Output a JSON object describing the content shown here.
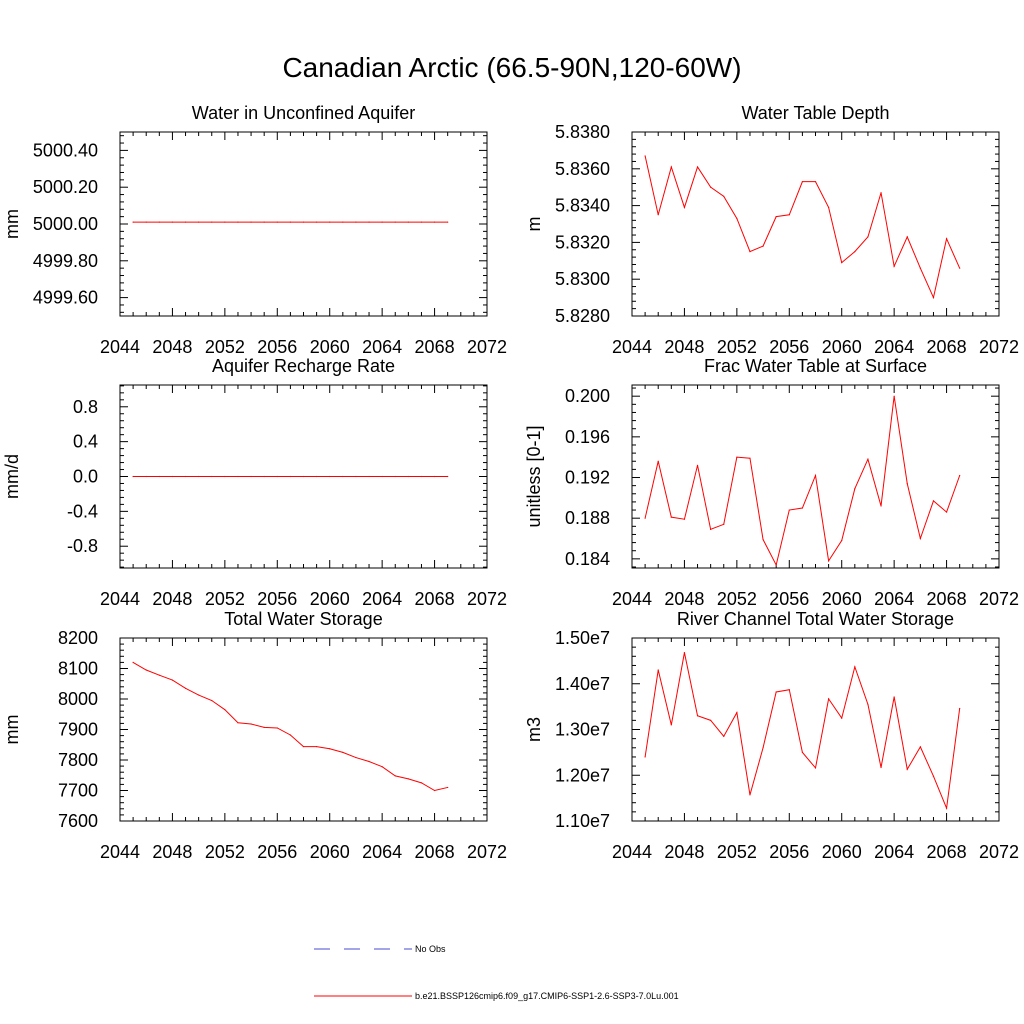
{
  "title": "Canadian Arctic (66.5-90N,120-60W)",
  "colors": {
    "model_line": "#ff0000",
    "obs_line": "#4a4ad0",
    "axis": "#000000"
  },
  "legend": {
    "obs_label": "No Obs",
    "model_label": "b.e21.BSSP126cmip6.f09_g17.CMIP6-SSP1-2.6-SSP3-7.0Lu.001"
  },
  "chart_data": [
    {
      "type": "line",
      "title": "Water in Unconfined Aquifer",
      "xlabel": "",
      "ylabel": "mm",
      "xlim": [
        2044,
        2072
      ],
      "ylim": [
        4999.5,
        5000.5
      ],
      "xticks": [
        "2044",
        "2048",
        "2052",
        "2056",
        "2060",
        "2064",
        "2068",
        "2072"
      ],
      "yticks": [
        "4999.60",
        "4999.80",
        "5000.00",
        "5000.20",
        "5000.40"
      ],
      "x": [
        2045,
        2046,
        2047,
        2048,
        2049,
        2050,
        2051,
        2052,
        2053,
        2054,
        2055,
        2056,
        2057,
        2058,
        2059,
        2060,
        2061,
        2062,
        2063,
        2064,
        2065,
        2066,
        2067,
        2068,
        2069
      ],
      "series": [
        {
          "values": [
            5000.01,
            5000.01,
            5000.01,
            5000.01,
            5000.01,
            5000.01,
            5000.01,
            5000.01,
            5000.01,
            5000.01,
            5000.01,
            5000.01,
            5000.01,
            5000.01,
            5000.01,
            5000.01,
            5000.01,
            5000.01,
            5000.01,
            5000.01,
            5000.01,
            5000.01,
            5000.01,
            5000.01,
            5000.01
          ]
        }
      ]
    },
    {
      "type": "line",
      "title": "Water Table Depth",
      "xlabel": "",
      "ylabel": "m",
      "xlim": [
        2044,
        2072
      ],
      "ylim": [
        5.828,
        5.838
      ],
      "xticks": [
        "2044",
        "2048",
        "2052",
        "2056",
        "2060",
        "2064",
        "2068",
        "2072"
      ],
      "yticks": [
        "5.8280",
        "5.8300",
        "5.8320",
        "5.8340",
        "5.8360",
        "5.8380"
      ],
      "x": [
        2045,
        2046,
        2047,
        2048,
        2049,
        2050,
        2051,
        2052,
        2053,
        2054,
        2055,
        2056,
        2057,
        2058,
        2059,
        2060,
        2061,
        2062,
        2063,
        2064,
        2065,
        2066,
        2067,
        2068,
        2069
      ],
      "series": [
        {
          "values": [
            5.8367,
            5.8335,
            5.8361,
            5.8339,
            5.8361,
            5.835,
            5.8345,
            5.8333,
            5.8315,
            5.8318,
            5.8334,
            5.8335,
            5.8353,
            5.8353,
            5.8339,
            5.8309,
            5.8315,
            5.8323,
            5.8347,
            5.8307,
            5.8323,
            5.8306,
            5.829,
            5.8322,
            5.8306
          ]
        }
      ]
    },
    {
      "type": "line",
      "title": "Aquifer Recharge Rate",
      "xlabel": "",
      "ylabel": "mm/d",
      "xlim": [
        2044,
        2072
      ],
      "ylim": [
        -1.05,
        1.05
      ],
      "xticks": [
        "2044",
        "2048",
        "2052",
        "2056",
        "2060",
        "2064",
        "2068",
        "2072"
      ],
      "yticks": [
        "-0.8",
        "-0.4",
        "0.0",
        "0.4",
        "0.8"
      ],
      "x": [
        2045,
        2046,
        2047,
        2048,
        2049,
        2050,
        2051,
        2052,
        2053,
        2054,
        2055,
        2056,
        2057,
        2058,
        2059,
        2060,
        2061,
        2062,
        2063,
        2064,
        2065,
        2066,
        2067,
        2068,
        2069
      ],
      "series": [
        {
          "values": [
            0,
            0,
            0,
            0,
            0,
            0,
            0,
            0,
            0,
            0,
            0,
            0,
            0,
            0,
            0,
            0,
            0,
            0,
            0,
            0,
            0,
            0,
            0,
            0,
            0
          ]
        }
      ]
    },
    {
      "type": "line",
      "title": "Frac Water Table at Surface",
      "xlabel": "",
      "ylabel": "unitless [0-1]",
      "xlim": [
        2044,
        2072
      ],
      "ylim": [
        0.1831,
        0.2011
      ],
      "xticks": [
        "2044",
        "2048",
        "2052",
        "2056",
        "2060",
        "2064",
        "2068",
        "2072"
      ],
      "yticks": [
        "0.184",
        "0.188",
        "0.192",
        "0.196",
        "0.200"
      ],
      "x": [
        2045,
        2046,
        2047,
        2048,
        2049,
        2050,
        2051,
        2052,
        2053,
        2054,
        2055,
        2056,
        2057,
        2058,
        2059,
        2060,
        2061,
        2062,
        2063,
        2064,
        2065,
        2066,
        2067,
        2068,
        2069
      ],
      "series": [
        {
          "values": [
            0.188,
            0.1936,
            0.1881,
            0.1879,
            0.1932,
            0.1869,
            0.1874,
            0.194,
            0.1939,
            0.1859,
            0.1834,
            0.1888,
            0.189,
            0.1922,
            0.1838,
            0.1858,
            0.1909,
            0.1938,
            0.1892,
            0.2,
            0.1914,
            0.186,
            0.1897,
            0.1886,
            0.1922
          ]
        }
      ]
    },
    {
      "type": "line",
      "title": "Total Water Storage",
      "xlabel": "",
      "ylabel": "mm",
      "xlim": [
        2044,
        2072
      ],
      "ylim": [
        7600,
        8200
      ],
      "xticks": [
        "2044",
        "2048",
        "2052",
        "2056",
        "2060",
        "2064",
        "2068",
        "2072"
      ],
      "yticks": [
        "7600",
        "7700",
        "7800",
        "7900",
        "8000",
        "8100",
        "8200"
      ],
      "x": [
        2045,
        2046,
        2047,
        2048,
        2049,
        2050,
        2051,
        2052,
        2053,
        2054,
        2055,
        2056,
        2057,
        2058,
        2059,
        2060,
        2061,
        2062,
        2063,
        2064,
        2065,
        2066,
        2067,
        2068,
        2069
      ],
      "series": [
        {
          "values": [
            8120,
            8095,
            8078,
            8062,
            8035,
            8013,
            7995,
            7965,
            7922,
            7918,
            7907,
            7905,
            7882,
            7844,
            7844,
            7837,
            7825,
            7808,
            7795,
            7778,
            7748,
            7738,
            7725,
            7700,
            7710
          ]
        }
      ]
    },
    {
      "type": "line",
      "title": "River Channel Total Water Storage",
      "xlabel": "",
      "ylabel": "m3",
      "xlim": [
        2044,
        2072
      ],
      "ylim": [
        11000000,
        15000000
      ],
      "xticks": [
        "2044",
        "2048",
        "2052",
        "2056",
        "2060",
        "2064",
        "2068",
        "2072"
      ],
      "yticks": [
        "1.10e7",
        "1.20e7",
        "1.30e7",
        "1.40e7",
        "1.50e7"
      ],
      "x": [
        2045,
        2046,
        2047,
        2048,
        2049,
        2050,
        2051,
        2052,
        2053,
        2054,
        2055,
        2056,
        2057,
        2058,
        2059,
        2060,
        2061,
        2062,
        2063,
        2064,
        2065,
        2066,
        2067,
        2068,
        2069
      ],
      "series": [
        {
          "values": [
            12400000,
            14300000,
            13100000,
            14680000,
            13300000,
            13200000,
            12850000,
            13370000,
            11570000,
            12600000,
            13820000,
            13870000,
            12500000,
            12160000,
            13670000,
            13250000,
            14370000,
            13550000,
            12170000,
            13710000,
            12130000,
            12620000,
            11980000,
            11280000,
            13460000
          ]
        }
      ]
    }
  ]
}
